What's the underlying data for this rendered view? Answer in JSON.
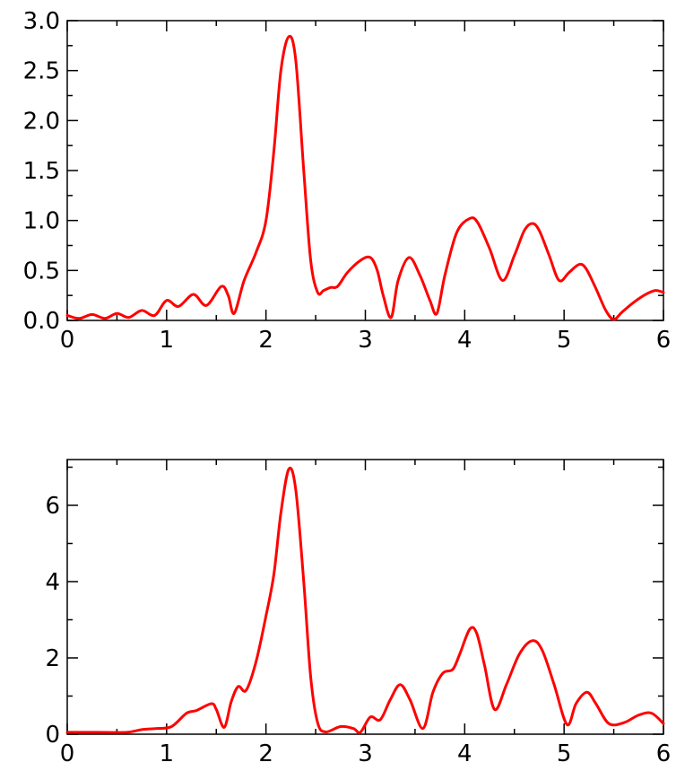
{
  "chart_data": [
    {
      "type": "line",
      "title": "",
      "xlabel": "",
      "ylabel": "",
      "xlim": [
        0,
        6
      ],
      "ylim": [
        0,
        3.0
      ],
      "grid": false,
      "x_ticks": [
        0,
        1,
        2,
        3,
        4,
        5,
        6
      ],
      "x_tick_labels": [
        "0",
        "1",
        "2",
        "3",
        "4",
        "5",
        "6"
      ],
      "y_ticks": [
        0,
        0.5,
        1.0,
        1.5,
        2.0,
        2.5,
        3.0
      ],
      "y_tick_labels": [
        "0.0",
        "0.5",
        "1.0",
        "1.5",
        "2.0",
        "2.5",
        "3.0"
      ],
      "series_color": "#ff0000",
      "series": [
        {
          "x": [
            0,
            0.12,
            0.25,
            0.38,
            0.5,
            0.62,
            0.75,
            0.88,
            1.0,
            1.12,
            1.27,
            1.4,
            1.55,
            1.62,
            1.68,
            1.78,
            1.9,
            2.0,
            2.08,
            2.15,
            2.23,
            2.3,
            2.38,
            2.45,
            2.52,
            2.58,
            2.65,
            2.72,
            2.82,
            2.95,
            3.05,
            3.12,
            3.18,
            3.26,
            3.33,
            3.44,
            3.55,
            3.65,
            3.72,
            3.8,
            3.92,
            4.05,
            4.13,
            4.25,
            4.38,
            4.5,
            4.6,
            4.68,
            4.75,
            4.85,
            4.95,
            5.05,
            5.15,
            5.22,
            5.32,
            5.42,
            5.5,
            5.58,
            5.7,
            5.82,
            5.92,
            6.0
          ],
          "y": [
            0.05,
            0.02,
            0.06,
            0.02,
            0.07,
            0.03,
            0.1,
            0.05,
            0.2,
            0.14,
            0.26,
            0.15,
            0.34,
            0.25,
            0.07,
            0.4,
            0.68,
            1.0,
            1.7,
            2.5,
            2.84,
            2.6,
            1.5,
            0.6,
            0.28,
            0.3,
            0.33,
            0.34,
            0.48,
            0.6,
            0.63,
            0.5,
            0.25,
            0.03,
            0.4,
            0.63,
            0.45,
            0.2,
            0.07,
            0.45,
            0.88,
            1.02,
            0.98,
            0.72,
            0.4,
            0.65,
            0.9,
            0.97,
            0.9,
            0.65,
            0.4,
            0.48,
            0.56,
            0.52,
            0.32,
            0.1,
            0.01,
            0.08,
            0.18,
            0.26,
            0.3,
            0.28
          ]
        }
      ]
    },
    {
      "type": "line",
      "title": "",
      "xlabel": "",
      "ylabel": "",
      "xlim": [
        0,
        6
      ],
      "ylim": [
        0,
        7.2
      ],
      "grid": false,
      "x_ticks": [
        0,
        1,
        2,
        3,
        4,
        5,
        6
      ],
      "x_tick_labels": [
        "0",
        "1",
        "2",
        "3",
        "4",
        "5",
        "6"
      ],
      "y_ticks": [
        0,
        2,
        4,
        6
      ],
      "y_tick_labels": [
        "0",
        "2",
        "4",
        "6"
      ],
      "series_color": "#ff0000",
      "series": [
        {
          "x": [
            0,
            0.3,
            0.6,
            0.75,
            0.9,
            1.05,
            1.2,
            1.3,
            1.45,
            1.5,
            1.58,
            1.65,
            1.72,
            1.8,
            1.9,
            2.0,
            2.08,
            2.15,
            2.23,
            2.3,
            2.38,
            2.45,
            2.52,
            2.6,
            2.75,
            2.88,
            2.95,
            3.05,
            3.15,
            3.25,
            3.35,
            3.45,
            3.58,
            3.68,
            3.78,
            3.88,
            3.95,
            4.05,
            4.12,
            4.2,
            4.3,
            4.42,
            4.55,
            4.68,
            4.78,
            4.9,
            5.03,
            5.12,
            5.23,
            5.32,
            5.45,
            5.6,
            5.75,
            5.88,
            6.0
          ],
          "y": [
            0.05,
            0.05,
            0.05,
            0.12,
            0.15,
            0.2,
            0.55,
            0.62,
            0.8,
            0.65,
            0.18,
            0.85,
            1.25,
            1.15,
            1.9,
            3.1,
            4.2,
            5.8,
            6.95,
            6.4,
            4.0,
            1.5,
            0.3,
            0.06,
            0.2,
            0.15,
            0.05,
            0.45,
            0.38,
            0.9,
            1.3,
            0.9,
            0.15,
            1.1,
            1.6,
            1.7,
            2.1,
            2.75,
            2.65,
            1.8,
            0.65,
            1.3,
            2.1,
            2.45,
            2.2,
            1.3,
            0.25,
            0.8,
            1.1,
            0.8,
            0.28,
            0.3,
            0.5,
            0.55,
            0.28
          ]
        }
      ]
    }
  ]
}
